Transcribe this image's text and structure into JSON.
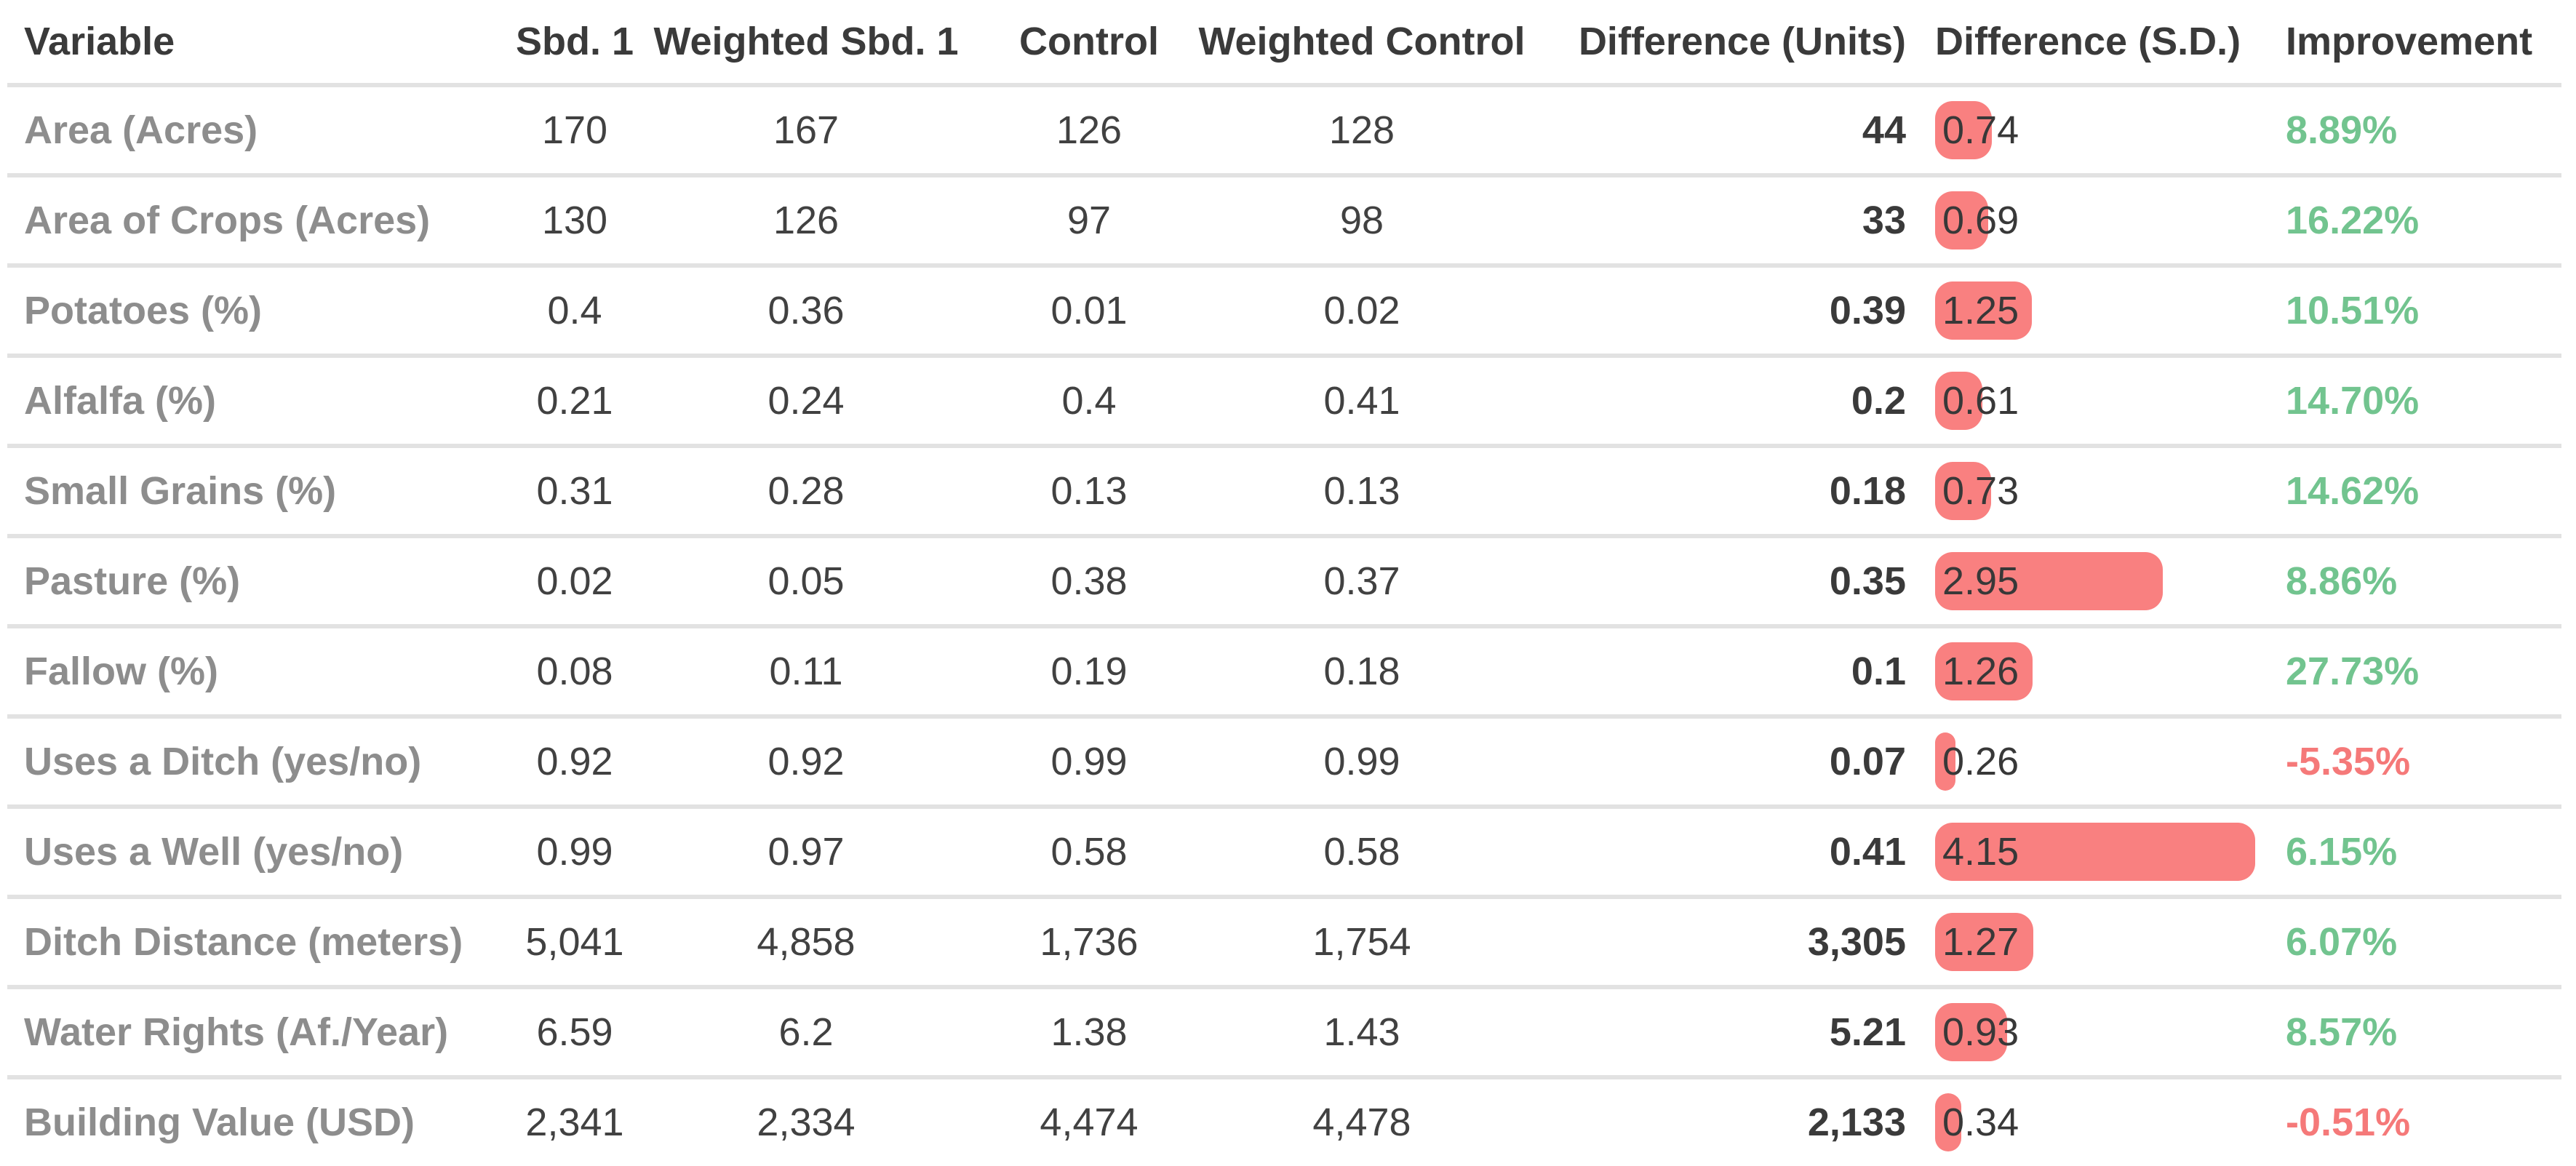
{
  "colors": {
    "bar": "#f98080",
    "positive": "#72c48f",
    "negative": "#f57979",
    "header": "#3a3a3a",
    "label": "#8d8d8d",
    "value": "#414141",
    "divider": "#e2e2e2"
  },
  "chart_data": {
    "type": "table",
    "title": "",
    "columns": [
      "Variable",
      "Sbd. 1",
      "Weighted Sbd. 1",
      "Control",
      "Weighted Control",
      "Difference (Units)",
      "Difference (S.D.)",
      "Improvement"
    ],
    "sd_bar_column": "difference_sd",
    "rows": [
      {
        "variable": "Area (Acres)",
        "sbd1": "170",
        "weighted_sbd1": "167",
        "control": "126",
        "weighted_control": "128",
        "difference_units": "44",
        "difference_sd": "0.74",
        "improvement": "8.89%"
      },
      {
        "variable": "Area of Crops (Acres)",
        "sbd1": "130",
        "weighted_sbd1": "126",
        "control": "97",
        "weighted_control": "98",
        "difference_units": "33",
        "difference_sd": "0.69",
        "improvement": "16.22%"
      },
      {
        "variable": "Potatoes (%)",
        "sbd1": "0.4",
        "weighted_sbd1": "0.36",
        "control": "0.01",
        "weighted_control": "0.02",
        "difference_units": "0.39",
        "difference_sd": "1.25",
        "improvement": "10.51%"
      },
      {
        "variable": "Alfalfa (%)",
        "sbd1": "0.21",
        "weighted_sbd1": "0.24",
        "control": "0.4",
        "weighted_control": "0.41",
        "difference_units": "0.2",
        "difference_sd": "0.61",
        "improvement": "14.70%"
      },
      {
        "variable": "Small Grains (%)",
        "sbd1": "0.31",
        "weighted_sbd1": "0.28",
        "control": "0.13",
        "weighted_control": "0.13",
        "difference_units": "0.18",
        "difference_sd": "0.73",
        "improvement": "14.62%"
      },
      {
        "variable": "Pasture (%)",
        "sbd1": "0.02",
        "weighted_sbd1": "0.05",
        "control": "0.38",
        "weighted_control": "0.37",
        "difference_units": "0.35",
        "difference_sd": "2.95",
        "improvement": "8.86%"
      },
      {
        "variable": "Fallow (%)",
        "sbd1": "0.08",
        "weighted_sbd1": "0.11",
        "control": "0.19",
        "weighted_control": "0.18",
        "difference_units": "0.1",
        "difference_sd": "1.26",
        "improvement": "27.73%"
      },
      {
        "variable": "Uses a Ditch (yes/no)",
        "sbd1": "0.92",
        "weighted_sbd1": "0.92",
        "control": "0.99",
        "weighted_control": "0.99",
        "difference_units": "0.07",
        "difference_sd": "0.26",
        "improvement": "-5.35%"
      },
      {
        "variable": "Uses a Well (yes/no)",
        "sbd1": "0.99",
        "weighted_sbd1": "0.97",
        "control": "0.58",
        "weighted_control": "0.58",
        "difference_units": "0.41",
        "difference_sd": "4.15",
        "improvement": "6.15%"
      },
      {
        "variable": "Ditch Distance (meters)",
        "sbd1": "5,041",
        "weighted_sbd1": "4,858",
        "control": "1,736",
        "weighted_control": "1,754",
        "difference_units": "3,305",
        "difference_sd": "1.27",
        "improvement": "6.07%"
      },
      {
        "variable": "Water Rights (Af./Year)",
        "sbd1": "6.59",
        "weighted_sbd1": "6.2",
        "control": "1.38",
        "weighted_control": "1.43",
        "difference_units": "5.21",
        "difference_sd": "0.93",
        "improvement": "8.57%"
      },
      {
        "variable": "Building Value (USD)",
        "sbd1": "2,341",
        "weighted_sbd1": "2,334",
        "control": "4,474",
        "weighted_control": "4,478",
        "difference_units": "2,133",
        "difference_sd": "0.34",
        "improvement": "-0.51%"
      }
    ]
  }
}
